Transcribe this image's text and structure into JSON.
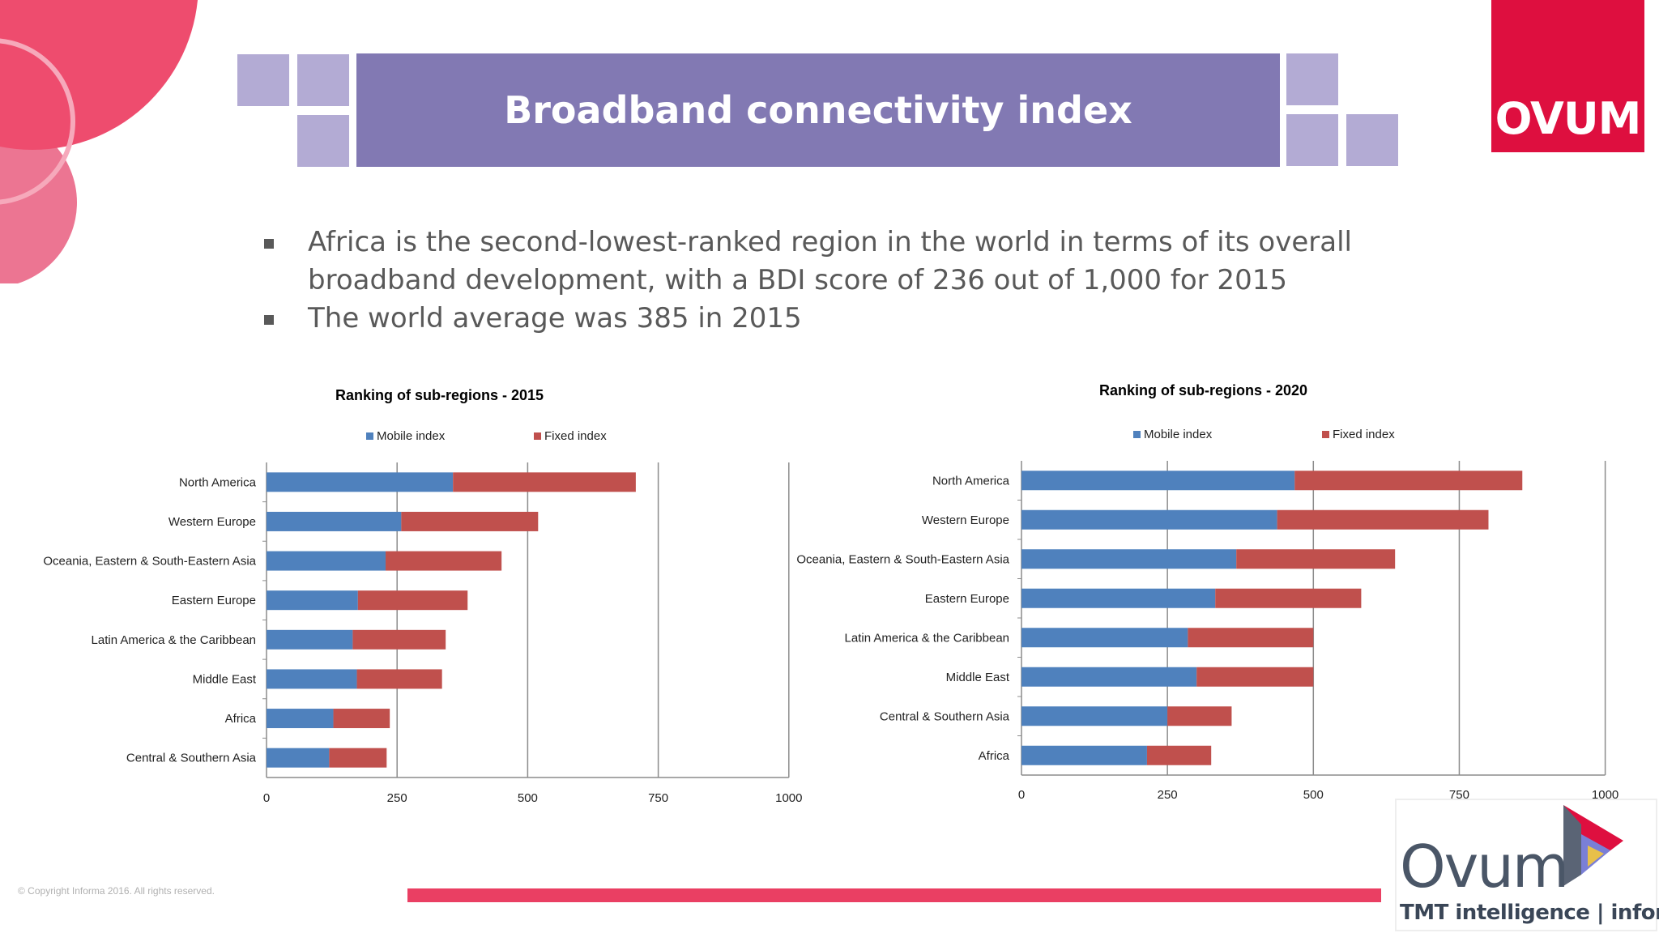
{
  "title": "Broadband connectivity index",
  "brand": {
    "logo_text": "OVUM",
    "logo_color": "#de0f3f",
    "tmt_word": "Ovum",
    "tmt_sub": "TMT intelligence | informa"
  },
  "bullets": [
    "Africa is the second-lowest-ranked region in the world in terms of its overall broadband development, with a BDI score of 236 out of 1,000 for 2015",
    "The world average was 385 in 2015"
  ],
  "footer": {
    "copyright": "© Copyright Informa 2016. All rights reserved."
  },
  "colors": {
    "title_bar": "#8279b3",
    "mobile": "#4f81bd",
    "fixed": "#c0504d",
    "accent": "#ea3f63"
  },
  "chart_data": [
    {
      "type": "bar",
      "orientation": "horizontal",
      "stacked": true,
      "title": "Ranking of sub-regions - 2015",
      "categories": [
        "North America",
        "Western Europe",
        "Oceania, Eastern & South-Eastern Asia",
        "Eastern Europe",
        "Latin America & the Caribbean",
        "Middle East",
        "Africa",
        "Central & Southern Asia"
      ],
      "series": [
        {
          "name": "Mobile index",
          "values": [
            357,
            258,
            228,
            175,
            165,
            173,
            128,
            120
          ]
        },
        {
          "name": "Fixed index",
          "values": [
            350,
            262,
            222,
            210,
            178,
            163,
            108,
            110
          ]
        }
      ],
      "xlim": [
        0,
        1000
      ],
      "xticks": [
        "0",
        "250",
        "500",
        "750",
        "1000"
      ],
      "grid": true,
      "legend": "top"
    },
    {
      "type": "bar",
      "orientation": "horizontal",
      "stacked": true,
      "title": "Ranking of sub-regions - 2020",
      "categories": [
        "North America",
        "Western Europe",
        "Oceania, Eastern & South-Eastern Asia",
        "Eastern Europe",
        "Latin America & the Caribbean",
        "Middle East",
        "Central & Southern Asia",
        "Africa"
      ],
      "series": [
        {
          "name": "Mobile index",
          "values": [
            468,
            438,
            368,
            332,
            285,
            300,
            250,
            215
          ]
        },
        {
          "name": "Fixed index",
          "values": [
            390,
            362,
            272,
            250,
            215,
            200,
            110,
            110
          ]
        }
      ],
      "xlim": [
        0,
        1000
      ],
      "xticks": [
        "0",
        "250",
        "500",
        "750",
        "1000"
      ],
      "grid": true,
      "legend": "top"
    }
  ]
}
